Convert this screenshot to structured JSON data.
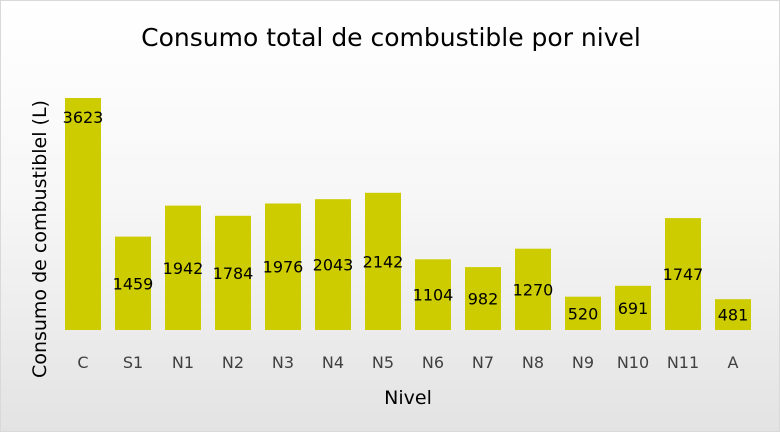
{
  "chart_data": {
    "type": "bar",
    "title": "Consumo total de  combustible por nivel",
    "xlabel": "Nivel",
    "ylabel": "Consumo de combustiblel (L)",
    "categories": [
      "C",
      "S1",
      "N1",
      "N2",
      "N3",
      "N4",
      "N5",
      "N6",
      "N7",
      "N8",
      "N9",
      "N10",
      "N11",
      "A"
    ],
    "values": [
      3623,
      1459,
      1942,
      1784,
      1976,
      2043,
      2142,
      1104,
      982,
      1270,
      520,
      691,
      1747,
      481
    ],
    "ylim": [
      0,
      3623
    ],
    "grid": false,
    "legend": "none",
    "colors": {
      "bar": "#cccc00",
      "background_top": "#ffffff",
      "background_bottom": "#e3e3e3"
    }
  }
}
